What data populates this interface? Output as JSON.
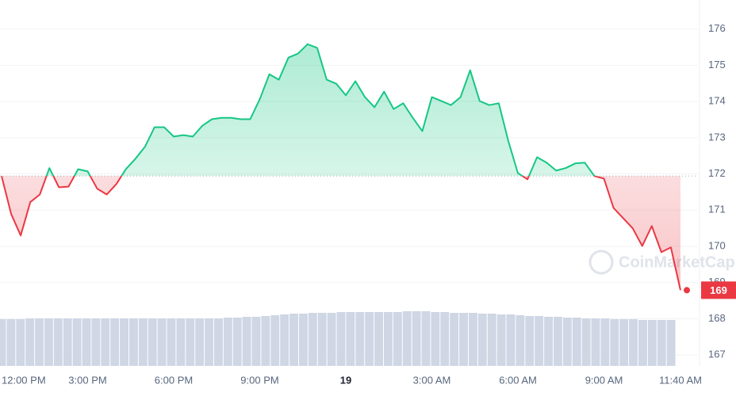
{
  "chart_data": {
    "type": "line",
    "watermark": "CoinMarketCap",
    "last_price_label": "169",
    "baseline": 171.94,
    "up_color": "#16c784",
    "down_color": "#ea3943",
    "grid": true,
    "xticks": [
      {
        "value": 0,
        "label": "12:00 PM"
      },
      {
        "value": 9,
        "label": "3:00 PM"
      },
      {
        "value": 18,
        "label": "6:00 PM"
      },
      {
        "value": 27,
        "label": "9:00 PM"
      },
      {
        "value": 36,
        "label": "19"
      },
      {
        "value": 45,
        "label": "3:00 AM"
      },
      {
        "value": 54,
        "label": "6:00 AM"
      },
      {
        "value": 63,
        "label": "9:00 AM"
      },
      {
        "value": 71,
        "label": "11:40 AM"
      }
    ],
    "xlim": [
      0,
      71
    ],
    "ylim": [
      166.7,
      176.8
    ],
    "yticks": [
      167,
      168,
      169,
      170,
      171,
      172,
      173,
      174,
      175,
      176
    ],
    "values": [
      171.94,
      170.89,
      170.3,
      171.22,
      171.43,
      172.16,
      171.63,
      171.65,
      172.13,
      172.07,
      171.59,
      171.43,
      171.72,
      172.13,
      172.42,
      172.75,
      173.29,
      173.29,
      173.03,
      173.07,
      173.03,
      173.33,
      173.51,
      173.55,
      173.55,
      173.51,
      173.51,
      174.06,
      174.75,
      174.6,
      175.21,
      175.32,
      175.58,
      175.48,
      174.6,
      174.49,
      174.17,
      174.56,
      174.12,
      173.84,
      174.27,
      173.79,
      173.95,
      173.55,
      173.18,
      174.12,
      174.01,
      173.9,
      174.12,
      174.86,
      174.01,
      173.9,
      173.95,
      172.9,
      172.02,
      171.85,
      172.46,
      172.31,
      172.09,
      172.16,
      172.29,
      172.31,
      171.94,
      171.87,
      171.06,
      170.78,
      170.5,
      170.01,
      170.56,
      169.84,
      169.97,
      168.79
    ],
    "volume": [
      59,
      59,
      59,
      60,
      60,
      60,
      60,
      60,
      60,
      60,
      60,
      60,
      60,
      60,
      60,
      60,
      60,
      60,
      60,
      60,
      60,
      60,
      60,
      60,
      61,
      61,
      62,
      62,
      63,
      64,
      65,
      66,
      66,
      67,
      67,
      67,
      68,
      68,
      68,
      68,
      68,
      68,
      68,
      69,
      69,
      69,
      68,
      68,
      67,
      67,
      67,
      66,
      66,
      65,
      65,
      64,
      63,
      63,
      62,
      62,
      61,
      61,
      60,
      60,
      60,
      59,
      59,
      59,
      58,
      58,
      58,
      58
    ],
    "volume_color": "#cfd6e4"
  }
}
